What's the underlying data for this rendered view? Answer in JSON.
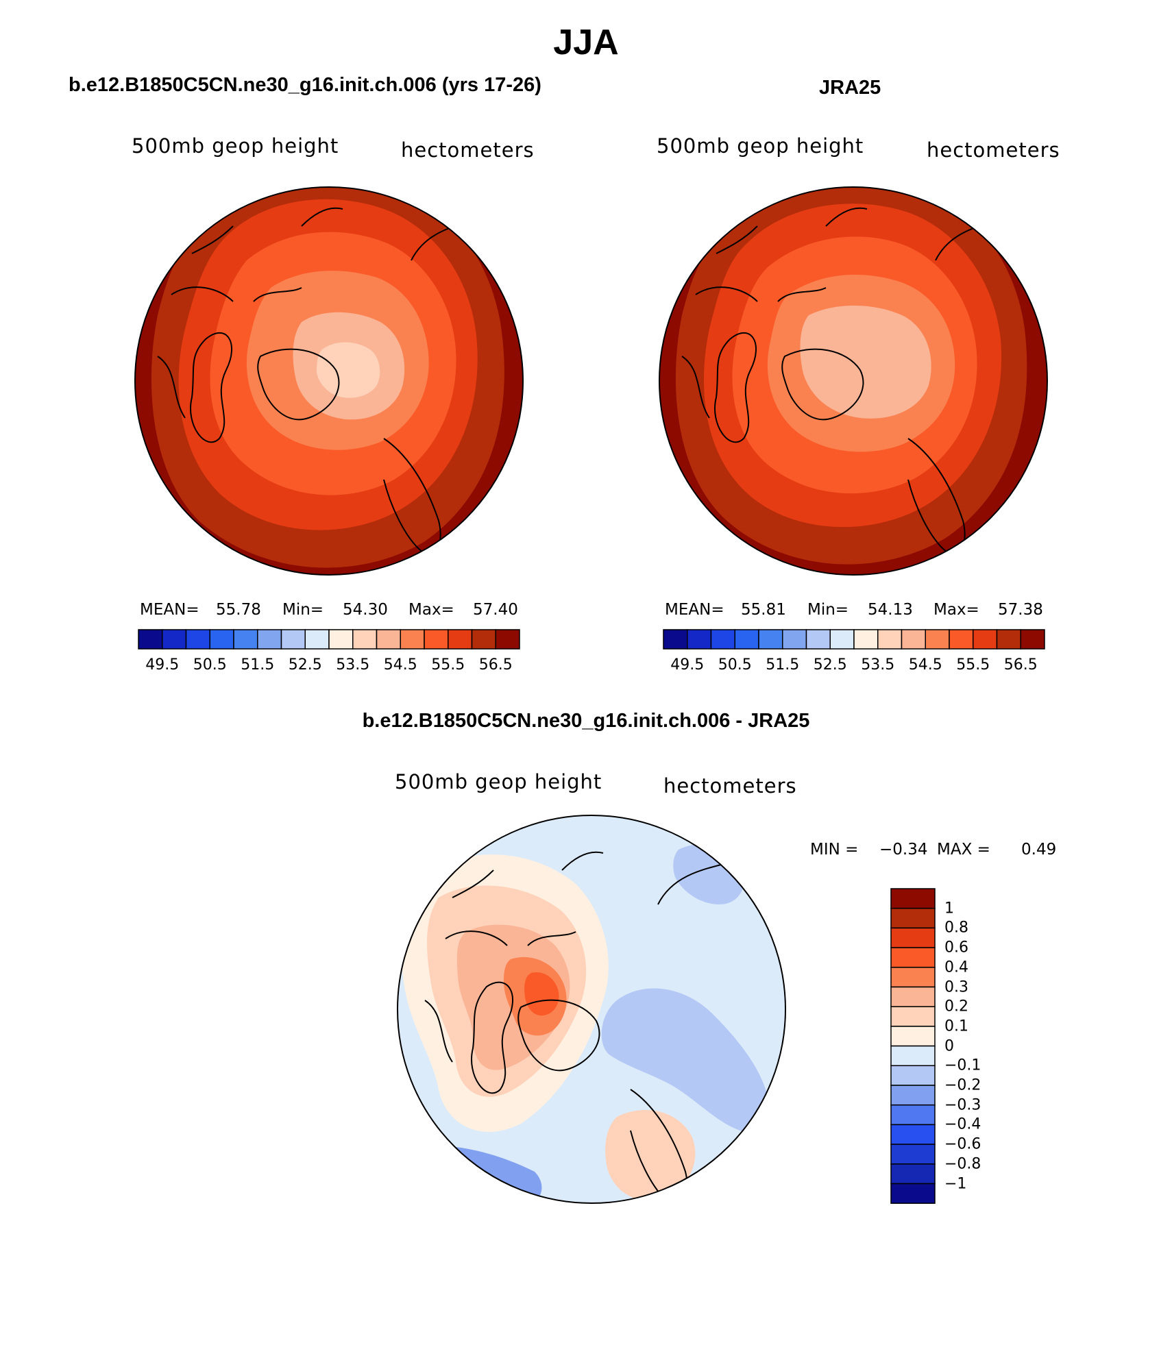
{
  "page_title": "JJA",
  "colors": {
    "abs_scale": [
      "#0a0a8c",
      "#1428c8",
      "#1e46e6",
      "#2864f0",
      "#4682f0",
      "#82a5f0",
      "#b4c8f5",
      "#dcebfa",
      "#fff0e1",
      "#ffd2b9",
      "#fab496",
      "#fa8250",
      "#fa5a28",
      "#e63c14",
      "#b42d0a",
      "#8c0a00"
    ],
    "diff_scale": [
      "#0a0a8c",
      "#1428b4",
      "#1e3cd2",
      "#2850f0",
      "#5078f0",
      "#82a0f0",
      "#b4c8f5",
      "#dcebfa",
      "#fff0e1",
      "#ffd2b9",
      "#fab496",
      "#fa8250",
      "#fa5a28",
      "#e63c14",
      "#b42d0a",
      "#8c0a00"
    ]
  },
  "panels": {
    "model": {
      "title": "b.e12.B1850C5CN.ne30_g16.init.ch.006 (yrs 17-26)",
      "variable": "500mb geop height",
      "units": "hectometers",
      "mean_label": "MEAN=",
      "mean_value": "55.78",
      "min_label": "Min=",
      "min_value": "54.30",
      "max_label": "Max=",
      "max_value": "57.40",
      "colorbar_ticks": [
        "49.5",
        "50.5",
        "51.5",
        "52.5",
        "53.5",
        "54.5",
        "55.5",
        "56.5"
      ]
    },
    "obs": {
      "title": "JRA25",
      "variable": "500mb geop height",
      "units": "hectometers",
      "mean_label": "MEAN=",
      "mean_value": "55.81",
      "min_label": "Min=",
      "min_value": "54.13",
      "max_label": "Max=",
      "max_value": "57.38",
      "colorbar_ticks": [
        "49.5",
        "50.5",
        "51.5",
        "52.5",
        "53.5",
        "54.5",
        "55.5",
        "56.5"
      ]
    },
    "diff": {
      "title": "b.e12.B1850C5CN.ne30_g16.init.ch.006 - JRA25",
      "variable": "500mb geop height",
      "units": "hectometers",
      "min_label": "MIN =",
      "min_value": "−0.34",
      "max_label": "MAX =",
      "max_value": "0.49",
      "colorbar_ticks": [
        "1",
        "0.8",
        "0.6",
        "0.4",
        "0.3",
        "0.2",
        "0.1",
        "0",
        "−0.1",
        "−0.2",
        "−0.3",
        "−0.4",
        "−0.6",
        "−0.8",
        "−1"
      ]
    }
  }
}
